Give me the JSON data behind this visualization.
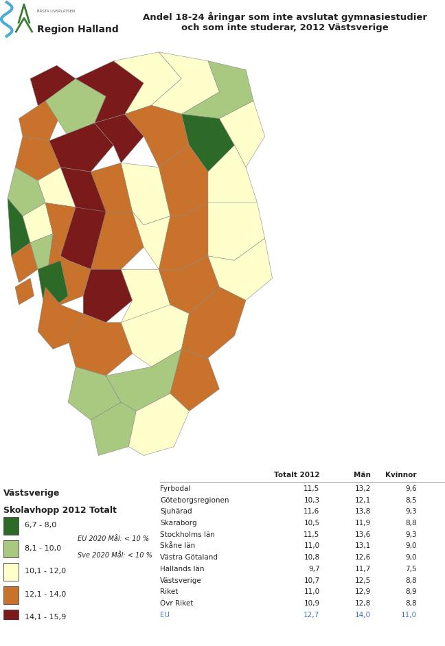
{
  "title_main": "Andel 18-24 åringar som inte avslutat gymnasiestudier\noch som inte studerar, 2012 Västsverige",
  "logo_text": "Region Halland",
  "logo_subtext": "BÄSTA LIVSPLATSEN",
  "legend_title": "Västsverige\nSkolavhopp 2012 Totalt",
  "legend_items": [
    {
      "label": "6,7 - 8,0",
      "color": "#2d6a27"
    },
    {
      "label": "8,1 - 10,0",
      "color": "#a8c97f"
    },
    {
      "label": "10,1 - 12,0",
      "color": "#ffffcc"
    },
    {
      "label": "12,1 - 14,0",
      "color": "#c8722b"
    },
    {
      "label": "14,1 - 15,9",
      "color": "#7b1a1a"
    }
  ],
  "eu_note_line1": "EU 2020 Mål: < 10 %",
  "eu_note_line2": "Sve 2020 Mål: < 10 %",
  "table_headers": [
    "",
    "Totalt 2012",
    "Män",
    "Kvinnor"
  ],
  "table_rows": [
    [
      "Fyrbodal",
      "11,5",
      "13,2",
      "9,6"
    ],
    [
      "Göteborgsregionen",
      "10,3",
      "12,1",
      "8,5"
    ],
    [
      "Sjuhärad",
      "11,6",
      "13,8",
      "9,3"
    ],
    [
      "Skaraborg",
      "10,5",
      "11,9",
      "8,8"
    ],
    [
      "Stockholms län",
      "11,5",
      "13,6",
      "9,3"
    ],
    [
      "Skåne län",
      "11,0",
      "13,1",
      "9,0"
    ],
    [
      "Västra Götaland",
      "10,8",
      "12,6",
      "9,0"
    ],
    [
      "Hallands län",
      "9,7",
      "11,7",
      "7,5"
    ],
    [
      "Västsverige",
      "10,7",
      "12,5",
      "8,8"
    ],
    [
      "Riket",
      "11,0",
      "12,9",
      "8,9"
    ],
    [
      "Övr Riket",
      "10,9",
      "12,8",
      "8,8"
    ],
    [
      "EU",
      "12,7",
      "14,0",
      "11,0"
    ]
  ],
  "eu_row_color": "#4472c4",
  "background_color": "#ffffff",
  "map_colors": {
    "dark_green": "#2d6a27",
    "light_green": "#a8c97f",
    "cream": "#ffffcc",
    "brown": "#c8722b",
    "dark_red": "#7b1a1a"
  }
}
